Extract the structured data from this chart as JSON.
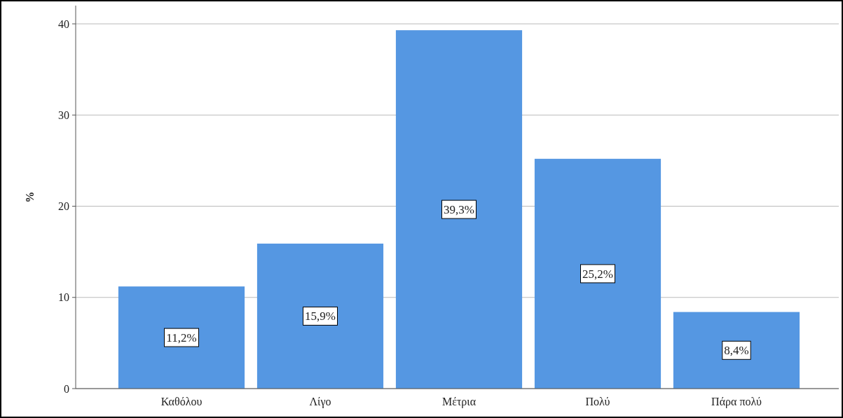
{
  "chart_data": {
    "type": "bar",
    "ylabel": "%",
    "categories": [
      "Καθόλου",
      "Λίγο",
      "Μέτρια",
      "Πολύ",
      "Πάρα πολύ"
    ],
    "values": [
      11.2,
      15.9,
      39.3,
      25.2,
      8.4
    ],
    "value_labels": [
      "11,2%",
      "15,9%",
      "39,3%",
      "25,2%",
      "8,4%"
    ],
    "color": "#5597e2",
    "ylim": [
      0,
      42
    ],
    "yticks": [
      0,
      10,
      20,
      30,
      40
    ],
    "grid": "y"
  }
}
